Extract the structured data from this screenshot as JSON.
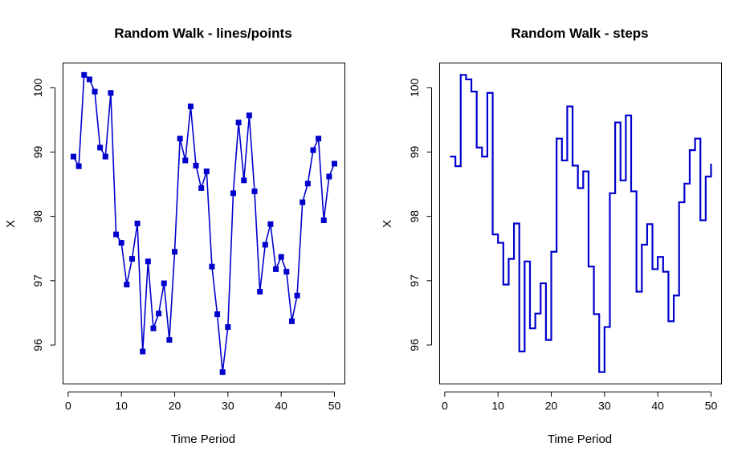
{
  "chart_data": [
    {
      "type": "line",
      "title": "Random Walk - lines/points",
      "xlabel": "Time Period",
      "ylabel": "X",
      "xlim": [
        1,
        50
      ],
      "ylim": [
        95.58,
        100.2
      ],
      "x_ticks": [
        0,
        10,
        20,
        30,
        40,
        50
      ],
      "y_ticks": [
        96,
        97,
        98,
        99,
        100
      ],
      "color": "#0000CD",
      "marker": "square",
      "grid": false,
      "series": [
        {
          "x": [
            1,
            2,
            3,
            4,
            5,
            6,
            7,
            8,
            9,
            10,
            11,
            12,
            13,
            14,
            15,
            16,
            17,
            18,
            19,
            20,
            21,
            22,
            23,
            24,
            25,
            26,
            27,
            28,
            29,
            30,
            31,
            32,
            33,
            34,
            35,
            36,
            37,
            38,
            39,
            40,
            41,
            42,
            43,
            44,
            45,
            46,
            47,
            48,
            49,
            50
          ],
          "values": [
            98.93,
            98.78,
            100.2,
            100.13,
            99.94,
            99.07,
            98.93,
            99.92,
            97.72,
            97.59,
            96.94,
            97.34,
            97.89,
            95.9,
            97.3,
            96.26,
            96.49,
            96.96,
            96.08,
            97.45,
            99.21,
            98.87,
            99.71,
            98.79,
            98.44,
            98.7,
            97.22,
            96.48,
            95.58,
            96.28,
            98.36,
            99.46,
            98.56,
            99.57,
            98.39,
            96.83,
            97.56,
            97.88,
            97.18,
            97.37,
            97.14,
            96.37,
            96.77,
            98.22,
            98.51,
            99.03,
            99.21,
            97.94,
            98.62,
            98.82
          ]
        }
      ]
    },
    {
      "type": "line",
      "title": "Random Walk - steps",
      "xlabel": "Time Period",
      "ylabel": "X",
      "xlim": [
        1,
        50
      ],
      "ylim": [
        95.58,
        100.2
      ],
      "x_ticks": [
        0,
        10,
        20,
        30,
        40,
        50
      ],
      "y_ticks": [
        96,
        97,
        98,
        99,
        100
      ],
      "color": "#0000CD",
      "step": true,
      "grid": false,
      "series": [
        {
          "x": [
            1,
            2,
            3,
            4,
            5,
            6,
            7,
            8,
            9,
            10,
            11,
            12,
            13,
            14,
            15,
            16,
            17,
            18,
            19,
            20,
            21,
            22,
            23,
            24,
            25,
            26,
            27,
            28,
            29,
            30,
            31,
            32,
            33,
            34,
            35,
            36,
            37,
            38,
            39,
            40,
            41,
            42,
            43,
            44,
            45,
            46,
            47,
            48,
            49,
            50
          ],
          "values": [
            98.93,
            98.78,
            100.2,
            100.13,
            99.94,
            99.07,
            98.93,
            99.92,
            97.72,
            97.59,
            96.94,
            97.34,
            97.89,
            95.9,
            97.3,
            96.26,
            96.49,
            96.96,
            96.08,
            97.45,
            99.21,
            98.87,
            99.71,
            98.79,
            98.44,
            98.7,
            97.22,
            96.48,
            95.58,
            96.28,
            98.36,
            99.46,
            98.56,
            99.57,
            98.39,
            96.83,
            97.56,
            97.88,
            97.18,
            97.37,
            97.14,
            96.37,
            96.77,
            98.22,
            98.51,
            99.03,
            99.21,
            97.94,
            98.62,
            98.82
          ]
        }
      ]
    }
  ]
}
